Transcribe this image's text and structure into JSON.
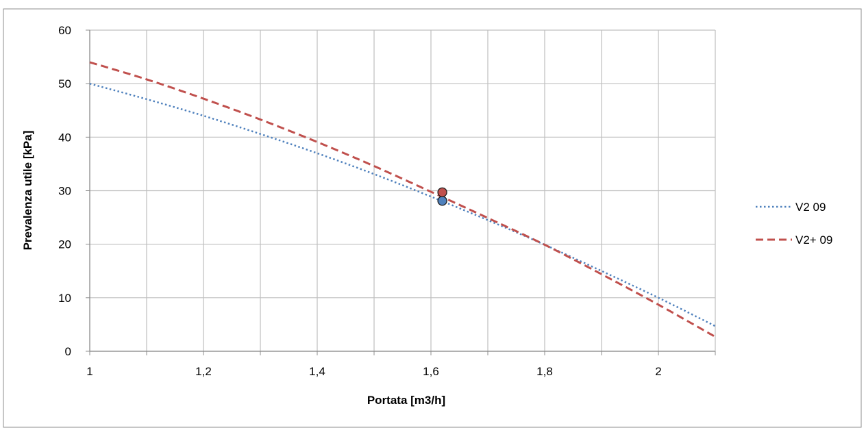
{
  "chart_data": {
    "type": "line",
    "title": "",
    "xlabel": "Portata [m3/h]",
    "ylabel": "Prevalenza utile [kPa]",
    "xlim": [
      1,
      2.1
    ],
    "ylim": [
      0,
      60
    ],
    "x_ticks": [
      1,
      1.1,
      1.2,
      1.3,
      1.4,
      1.5,
      1.6,
      1.7,
      1.8,
      1.9,
      2,
      2.1
    ],
    "x_tick_labels": [
      "1",
      "",
      "1,2",
      "",
      "1,4",
      "",
      "1,6",
      "",
      "1,8",
      "",
      "2",
      ""
    ],
    "y_ticks": [
      0,
      10,
      20,
      30,
      40,
      50,
      60
    ],
    "y_tick_labels": [
      "0",
      "10",
      "20",
      "30",
      "40",
      "50",
      "60"
    ],
    "grid": true,
    "legend_position": "right",
    "series": [
      {
        "name": "V2 09",
        "color": "#4F81BD",
        "line_style": "dotted",
        "x": [
          1.0,
          1.1,
          1.2,
          1.3,
          1.4,
          1.5,
          1.6,
          1.7,
          1.8,
          1.9,
          2.0,
          2.1
        ],
        "y": [
          50.0,
          47.1,
          44.0,
          40.6,
          37.0,
          33.1,
          28.9,
          24.5,
          19.9,
          15.0,
          10.0,
          4.7
        ],
        "marker": {
          "x": 1.62,
          "y": 28.1
        }
      },
      {
        "name": "V2+ 09",
        "color": "#C0504D",
        "line_style": "dashed",
        "x": [
          1.0,
          1.1,
          1.2,
          1.3,
          1.4,
          1.5,
          1.6,
          1.7,
          1.8,
          1.9,
          2.0,
          2.1
        ],
        "y": [
          54.0,
          50.8,
          47.2,
          43.3,
          39.1,
          34.6,
          29.8,
          24.9,
          19.9,
          14.4,
          8.7,
          2.7
        ],
        "marker": {
          "x": 1.62,
          "y": 29.7
        }
      }
    ]
  }
}
